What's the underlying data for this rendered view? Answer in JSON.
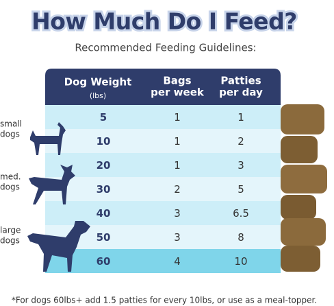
{
  "header": {
    "title": "How Much Do I Feed?",
    "subtitle": "Recommended Feeding Guidelines:"
  },
  "table": {
    "columns": [
      [
        "Dog Weight",
        "(lbs)"
      ],
      [
        "Bags",
        "per week"
      ],
      [
        "Patties",
        "per day"
      ]
    ],
    "rows": [
      [
        5,
        1,
        1
      ],
      [
        10,
        1,
        2
      ],
      [
        20,
        1,
        3
      ],
      [
        30,
        2,
        5
      ],
      [
        40,
        3,
        6.5
      ],
      [
        50,
        3,
        8
      ],
      [
        60,
        4,
        10
      ]
    ]
  },
  "side_labels": [
    [
      "small",
      "dogs"
    ],
    [
      "med.",
      "dogs"
    ],
    [
      "large",
      "dogs"
    ]
  ],
  "footnote": "*For dogs 60lbs+ add 1.5 patties for every 10lbs, or use as a meal-topper."
}
